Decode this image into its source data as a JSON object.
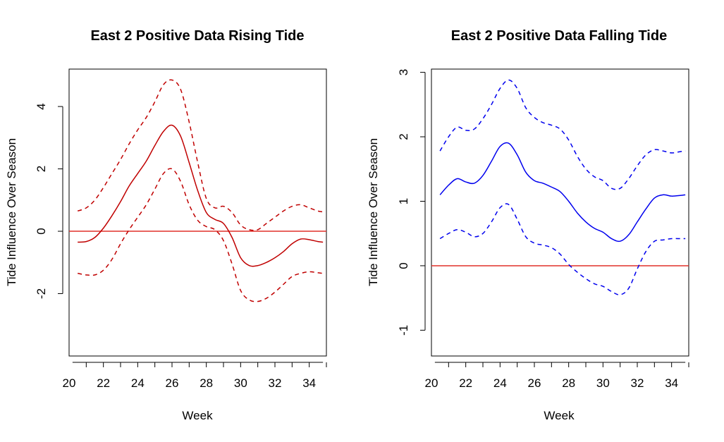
{
  "chart_data": [
    {
      "type": "line",
      "title": "East 2 Positive Data Rising Tide",
      "xlabel": "Week",
      "ylabel": "Tide Influence Over Season",
      "xlim": [
        20,
        35
      ],
      "ylim": [
        -4,
        5.2
      ],
      "xticks": [
        20,
        22,
        24,
        26,
        28,
        30,
        32,
        34
      ],
      "yticks": [
        -2,
        0,
        2,
        4
      ],
      "reference_line": {
        "y": 0,
        "color": "#e0302a"
      },
      "line_color": "#c00000",
      "x": [
        20.5,
        21.0,
        21.5,
        22.0,
        22.5,
        23.0,
        23.5,
        24.0,
        24.5,
        25.0,
        25.5,
        26.0,
        26.5,
        27.0,
        27.5,
        28.0,
        28.5,
        29.0,
        29.5,
        30.0,
        30.5,
        31.0,
        31.5,
        32.0,
        32.5,
        33.0,
        33.5,
        34.0,
        34.5,
        34.8
      ],
      "series": [
        {
          "style": "solid",
          "values": [
            -0.35,
            -0.33,
            -0.2,
            0.1,
            0.5,
            0.95,
            1.45,
            1.85,
            2.25,
            2.75,
            3.2,
            3.4,
            3.05,
            2.2,
            1.3,
            0.6,
            0.38,
            0.25,
            -0.2,
            -0.85,
            -1.1,
            -1.1,
            -1.0,
            -0.85,
            -0.65,
            -0.4,
            -0.25,
            -0.27,
            -0.33,
            -0.35
          ]
        },
        {
          "style": "dashed",
          "values": [
            0.65,
            0.75,
            1.0,
            1.4,
            1.85,
            2.3,
            2.8,
            3.25,
            3.65,
            4.15,
            4.7,
            4.85,
            4.55,
            3.5,
            2.2,
            1.05,
            0.75,
            0.8,
            0.6,
            0.2,
            0.05,
            0.05,
            0.25,
            0.45,
            0.65,
            0.8,
            0.85,
            0.75,
            0.65,
            0.62
          ]
        },
        {
          "style": "dashed",
          "values": [
            -1.35,
            -1.4,
            -1.4,
            -1.25,
            -0.9,
            -0.4,
            0.05,
            0.45,
            0.85,
            1.35,
            1.85,
            2.0,
            1.6,
            0.85,
            0.35,
            0.15,
            0.05,
            -0.3,
            -1.05,
            -1.9,
            -2.2,
            -2.25,
            -2.15,
            -1.95,
            -1.7,
            -1.45,
            -1.35,
            -1.3,
            -1.33,
            -1.35
          ]
        }
      ]
    },
    {
      "type": "line",
      "title": "East 2 Positive Data Falling Tide",
      "xlabel": "Week",
      "ylabel": "Tide Influence Over Season",
      "xlim": [
        20,
        35
      ],
      "ylim": [
        -1.4,
        3.05
      ],
      "xticks": [
        20,
        22,
        24,
        26,
        28,
        30,
        32,
        34
      ],
      "yticks": [
        -1,
        0,
        1,
        2,
        3
      ],
      "reference_line": {
        "y": 0,
        "color": "#e0302a"
      },
      "line_color": "#0000ee",
      "x": [
        20.5,
        21.0,
        21.5,
        22.0,
        22.5,
        23.0,
        23.5,
        24.0,
        24.5,
        25.0,
        25.5,
        26.0,
        26.5,
        27.0,
        27.5,
        28.0,
        28.5,
        29.0,
        29.5,
        30.0,
        30.5,
        31.0,
        31.5,
        32.0,
        32.5,
        33.0,
        33.5,
        34.0,
        34.5,
        34.8
      ],
      "series": [
        {
          "style": "solid",
          "values": [
            1.1,
            1.25,
            1.35,
            1.3,
            1.28,
            1.4,
            1.62,
            1.85,
            1.9,
            1.72,
            1.45,
            1.32,
            1.28,
            1.22,
            1.15,
            1.0,
            0.82,
            0.68,
            0.58,
            0.52,
            0.42,
            0.38,
            0.48,
            0.68,
            0.88,
            1.05,
            1.1,
            1.08,
            1.09,
            1.1
          ]
        },
        {
          "style": "dashed",
          "values": [
            1.78,
            2.0,
            2.15,
            2.1,
            2.12,
            2.28,
            2.5,
            2.75,
            2.88,
            2.75,
            2.45,
            2.3,
            2.22,
            2.18,
            2.12,
            1.95,
            1.7,
            1.5,
            1.38,
            1.32,
            1.2,
            1.2,
            1.35,
            1.55,
            1.72,
            1.8,
            1.78,
            1.75,
            1.77,
            1.78
          ]
        },
        {
          "style": "dashed",
          "values": [
            0.42,
            0.5,
            0.56,
            0.52,
            0.45,
            0.5,
            0.68,
            0.9,
            0.95,
            0.72,
            0.45,
            0.35,
            0.32,
            0.28,
            0.18,
            0.02,
            -0.1,
            -0.2,
            -0.28,
            -0.32,
            -0.4,
            -0.45,
            -0.35,
            -0.05,
            0.22,
            0.38,
            0.4,
            0.42,
            0.42,
            0.42
          ]
        }
      ]
    }
  ]
}
